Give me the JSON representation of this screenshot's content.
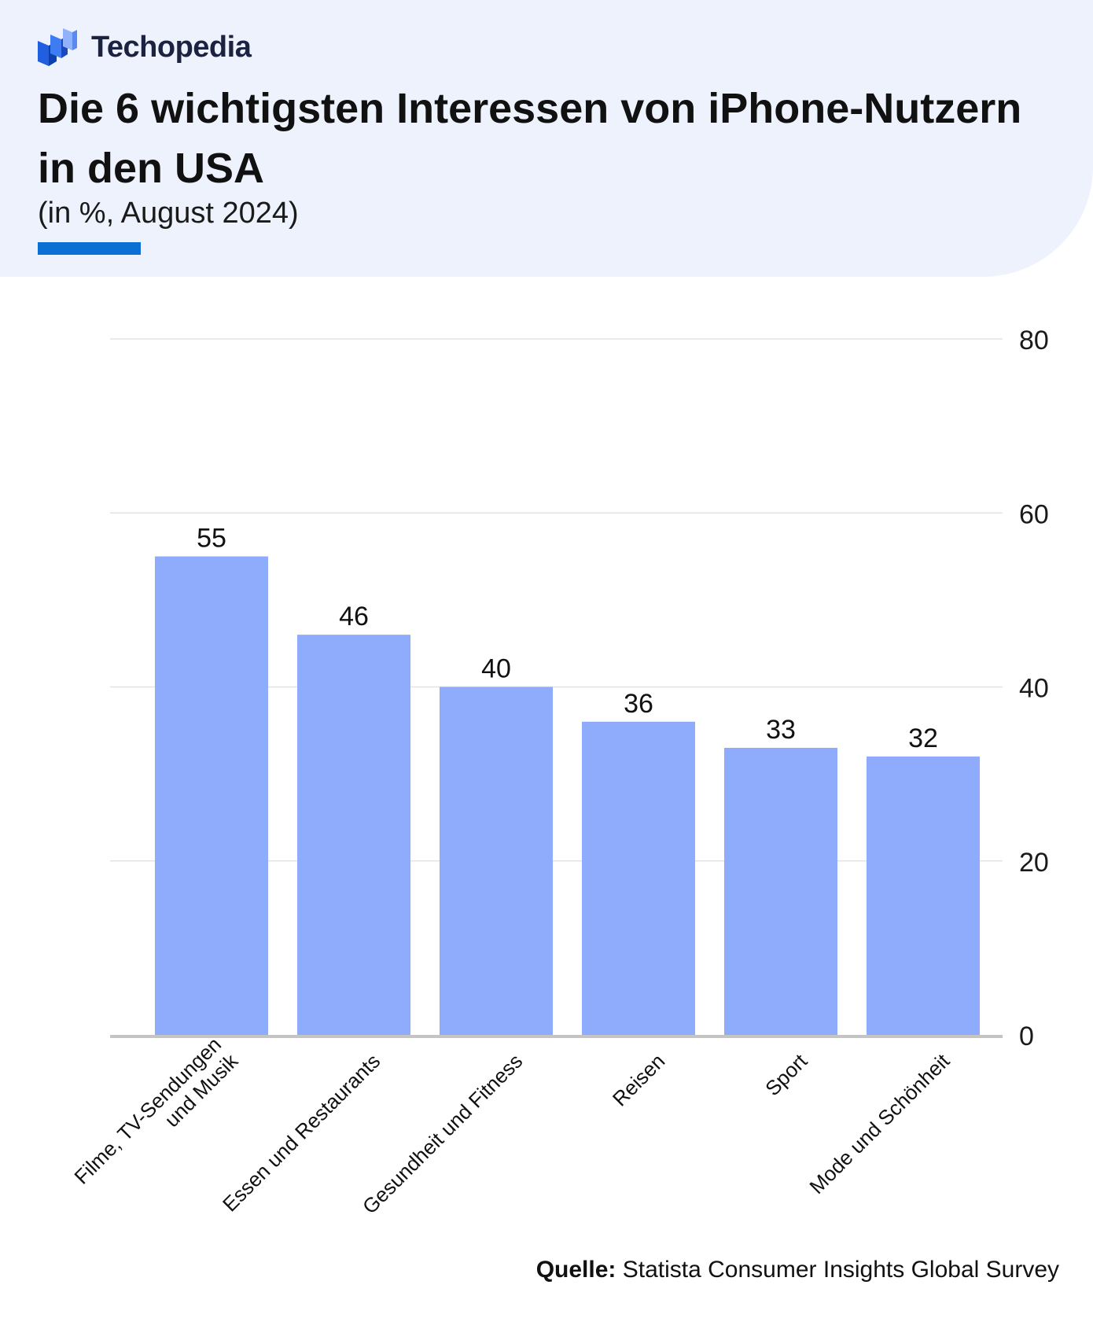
{
  "brand": {
    "name": "Techopedia",
    "logo_icon": "techopedia-logo-icon"
  },
  "header": {
    "title": "Die 6 wichtigsten Interessen von iPhone-Nutzern in den USA",
    "subtitle": "(in %, August 2024)"
  },
  "colors": {
    "bar": "#8fabfb",
    "accent": "#0b6fd3",
    "header_bg": "#eef2fd",
    "grid": "#e3e3e3",
    "baseline": "#c4c4c4"
  },
  "chart_data": {
    "type": "bar",
    "categories": [
      [
        "Filme, TV-Sendungen",
        "und Musik"
      ],
      [
        "Essen und Restaurants"
      ],
      [
        "Gesundheit und Fitness"
      ],
      [
        "Reisen"
      ],
      [
        "Sport"
      ],
      [
        "Mode und Schönheit"
      ]
    ],
    "values": [
      55,
      46,
      40,
      36,
      33,
      32
    ],
    "ylim": [
      0,
      80
    ],
    "yticks": [
      0,
      20,
      40,
      60,
      80
    ],
    "y_axis_side": "right",
    "grid": true,
    "data_labels": true
  },
  "source": {
    "label": "Quelle:",
    "text": "Statista Consumer Insights Global Survey"
  }
}
